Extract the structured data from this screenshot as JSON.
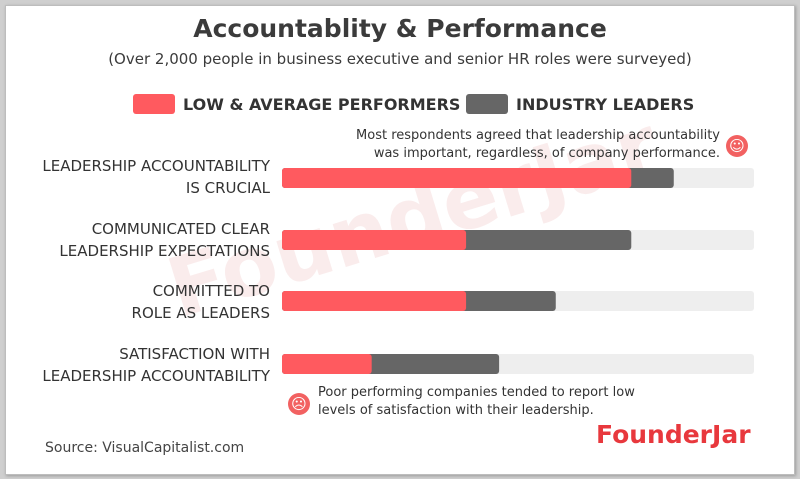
{
  "title": "Accountablity & Performance",
  "subtitle": "(Over 2,000 people in business executive and senior HR roles were surveyed)",
  "source": "Source: VisualCapitalist.com",
  "brand": "FounderJar",
  "watermark": "FounderJar",
  "notes": {
    "top_line1": "Most respondents agreed that leadership accountability",
    "top_line2": "was important, regardless, of company performance.",
    "bottom_line1": "Poor performing companies tended to report low",
    "bottom_line2": "levels of satisfaction with their leadership."
  },
  "icons": {
    "top": "smiley-face-icon",
    "bottom": "sad-face-icon"
  },
  "colors": {
    "low_avg": "#ff5a5f",
    "leaders": "#666666",
    "track": "#eeeeee",
    "brand": "#e8383d"
  },
  "chart_data": {
    "type": "bar",
    "orientation": "horizontal",
    "stacked": "overlay",
    "categories": [
      [
        "LEADERSHIP ACCOUNTABILITY",
        "IS CRUCIAL"
      ],
      [
        "COMMUNICATED CLEAR",
        "LEADERSHIP EXPECTATIONS"
      ],
      [
        "COMMITTED TO",
        "ROLE AS LEADERS"
      ],
      [
        "SATISFACTION WITH",
        "LEADERSHIP ACCOUNTABILITY"
      ]
    ],
    "series": [
      {
        "name": "LOW & AVERAGE PERFORMERS",
        "values": [
          74,
          39,
          39,
          19
        ]
      },
      {
        "name": "INDUSTRY LEADERS",
        "values": [
          83,
          74,
          58,
          46
        ]
      }
    ],
    "xlim": [
      0,
      100
    ],
    "legend": "top",
    "grid": false
  }
}
